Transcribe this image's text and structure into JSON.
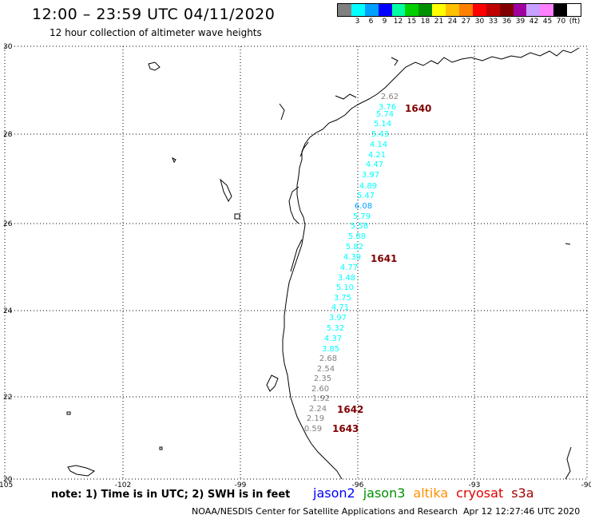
{
  "header": {
    "title": "12:00 – 23:59 UTC 04/11/2020",
    "subtitle": "12 hour collection of altimeter wave heights"
  },
  "scale": {
    "labels": [
      "",
      "3",
      "6",
      "9",
      "12",
      "15",
      "18",
      "21",
      "24",
      "27",
      "30",
      "33",
      "36",
      "39",
      "42",
      "45",
      "70",
      "(ft)"
    ],
    "colors": [
      "#808080",
      "#00ffff",
      "#00a0ff",
      "#0000ff",
      "#00ffa0",
      "#00d000",
      "#009000",
      "#ffff00",
      "#ffc000",
      "#ff8000",
      "#ff0000",
      "#c00000",
      "#800000",
      "#a000a0",
      "#c8a0ff",
      "#ff80ff",
      "#000000",
      "#ffffff"
    ]
  },
  "axes": {
    "lon_labels": [
      "-105",
      "-102",
      "-99",
      "-96",
      "-93",
      "-90"
    ],
    "lat_labels": [
      "30",
      "28",
      "26",
      "24",
      "22",
      "20"
    ]
  },
  "passes": [
    {
      "label": "1640",
      "color": "#800000"
    },
    {
      "label": "1641",
      "color": "#800000"
    },
    {
      "label": "1642",
      "color": "#800000"
    },
    {
      "label": "1643",
      "color": "#800000"
    }
  ],
  "observations": [
    {
      "value": "2.62",
      "color": "#808080"
    },
    {
      "value": "3.76",
      "color": "#00ffff"
    },
    {
      "value": "5.74",
      "color": "#00ffff"
    },
    {
      "value": "5.14",
      "color": "#00ffff"
    },
    {
      "value": "5.43",
      "color": "#00ffff"
    },
    {
      "value": "4.14",
      "color": "#00ffff"
    },
    {
      "value": "4.21",
      "color": "#00ffff"
    },
    {
      "value": "4.47",
      "color": "#00ffff"
    },
    {
      "value": "3.97",
      "color": "#00ffff"
    },
    {
      "value": "4.89",
      "color": "#00ffff"
    },
    {
      "value": "5.47",
      "color": "#00ffff"
    },
    {
      "value": "6.08",
      "color": "#00a0ff"
    },
    {
      "value": "5.79",
      "color": "#00ffff"
    },
    {
      "value": "5.58",
      "color": "#00ffff"
    },
    {
      "value": "5.08",
      "color": "#00ffff"
    },
    {
      "value": "5.82",
      "color": "#00ffff"
    },
    {
      "value": "4.39",
      "color": "#00ffff"
    },
    {
      "value": "4.77",
      "color": "#00ffff"
    },
    {
      "value": "3.48",
      "color": "#00ffff"
    },
    {
      "value": "5.10",
      "color": "#00ffff"
    },
    {
      "value": "3.75",
      "color": "#00ffff"
    },
    {
      "value": "4.71",
      "color": "#00ffff"
    },
    {
      "value": "3.97",
      "color": "#00ffff"
    },
    {
      "value": "5.32",
      "color": "#00ffff"
    },
    {
      "value": "4.37",
      "color": "#00ffff"
    },
    {
      "value": "3.85",
      "color": "#00ffff"
    },
    {
      "value": "2.68",
      "color": "#808080"
    },
    {
      "value": "2.54",
      "color": "#808080"
    },
    {
      "value": "2.35",
      "color": "#808080"
    },
    {
      "value": "2.60",
      "color": "#808080"
    },
    {
      "value": "1.92",
      "color": "#808080"
    },
    {
      "value": "2.24",
      "color": "#808080"
    },
    {
      "value": "2.19",
      "color": "#808080"
    },
    {
      "value": "0.59",
      "color": "#808080"
    }
  ],
  "footer": {
    "note": "note: 1) Time is in UTC; 2) SWH is in feet",
    "satellites": [
      {
        "name": "jason2",
        "color": "#0000ff"
      },
      {
        "name": "jason3",
        "color": "#009000"
      },
      {
        "name": "altika",
        "color": "#ff9000"
      },
      {
        "name": "cryosat",
        "color": "#e00000"
      },
      {
        "name": "s3a",
        "color": "#a00000"
      }
    ],
    "credit": "NOAA/NESDIS Center for Satellite Applications and Research",
    "timestamp": "Apr 12 12:27:46 UTC 2020"
  }
}
